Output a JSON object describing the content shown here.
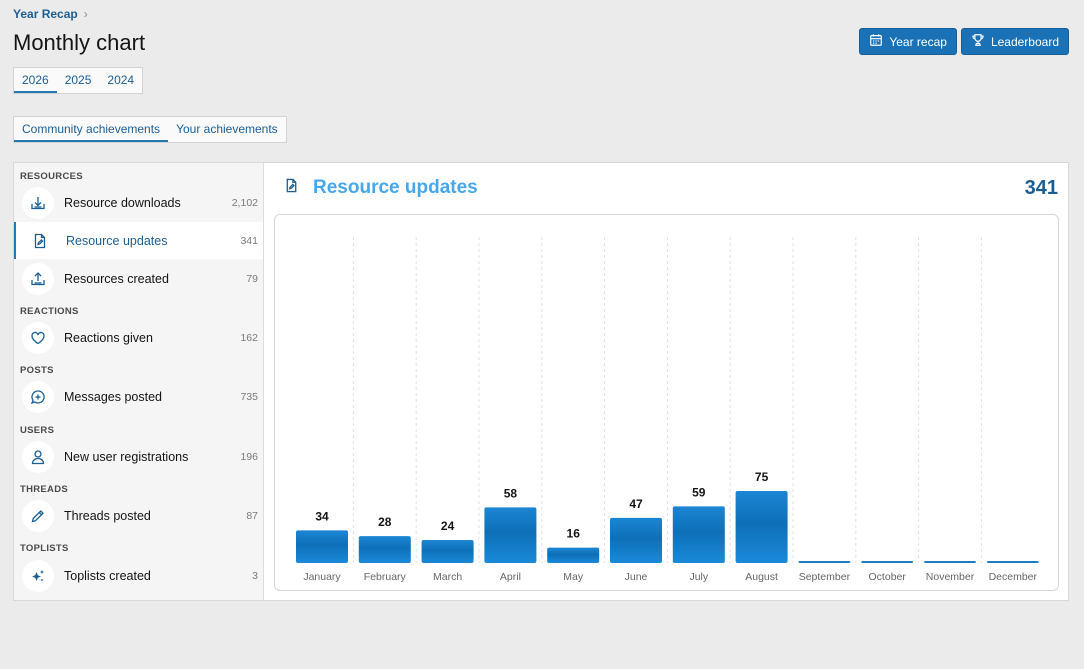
{
  "breadcrumb": {
    "label": "Year Recap",
    "chevron": "›"
  },
  "page_title": "Monthly chart",
  "buttons": [
    {
      "label": "Year recap",
      "icon": "calendar-icon"
    },
    {
      "label": "Leaderboard",
      "icon": "trophy-icon"
    }
  ],
  "year_tabs": [
    {
      "label": "2026",
      "active": true
    },
    {
      "label": "2025",
      "active": false
    },
    {
      "label": "2024",
      "active": false
    }
  ],
  "achievement_tabs": [
    {
      "label": "Community achievements",
      "active": true
    },
    {
      "label": "Your achievements",
      "active": false
    }
  ],
  "sidebar": {
    "sections": [
      {
        "heading": "RESOURCES"
      },
      {
        "heading": "REACTIONS"
      },
      {
        "heading": "POSTS"
      },
      {
        "heading": "USERS"
      },
      {
        "heading": "THREADS"
      },
      {
        "heading": "TOPLISTS"
      }
    ],
    "items": [
      {
        "label": "Resource downloads",
        "count": "2,102",
        "icon": "download-tray-icon",
        "active": false
      },
      {
        "label": "Resource updates",
        "count": "341",
        "icon": "document-edit-icon",
        "active": true
      },
      {
        "label": "Resources created",
        "count": "79",
        "icon": "upload-tray-icon",
        "active": false
      },
      {
        "label": "Reactions given",
        "count": "162",
        "icon": "heart-icon",
        "active": false
      },
      {
        "label": "Messages posted",
        "count": "735",
        "icon": "message-plus-icon",
        "active": false
      },
      {
        "label": "New user registrations",
        "count": "196",
        "icon": "user-icon",
        "active": false
      },
      {
        "label": "Threads posted",
        "count": "87",
        "icon": "pencil-icon",
        "active": false
      },
      {
        "label": "Toplists created",
        "count": "3",
        "icon": "stars-icon",
        "active": false
      }
    ]
  },
  "chart_header": {
    "title": "Resource updates",
    "total": "341",
    "icon": "document-edit-icon"
  },
  "colors": {
    "accent": "#2577b1",
    "bar": "#1a7bc7",
    "title": "#47a7eb",
    "button": "#1a71b5"
  },
  "chart_data": {
    "type": "bar",
    "title": "Resource updates",
    "categories": [
      "January",
      "February",
      "March",
      "April",
      "May",
      "June",
      "July",
      "August",
      "September",
      "October",
      "November",
      "December"
    ],
    "values": [
      34,
      28,
      24,
      58,
      16,
      47,
      59,
      75,
      0,
      0,
      0,
      0
    ],
    "data_labels": [
      "34",
      "28",
      "24",
      "58",
      "16",
      "47",
      "59",
      "75",
      "",
      "",
      "",
      ""
    ],
    "xlabel": "",
    "ylabel": "",
    "grid": "vertical dashed",
    "legend": "none"
  }
}
